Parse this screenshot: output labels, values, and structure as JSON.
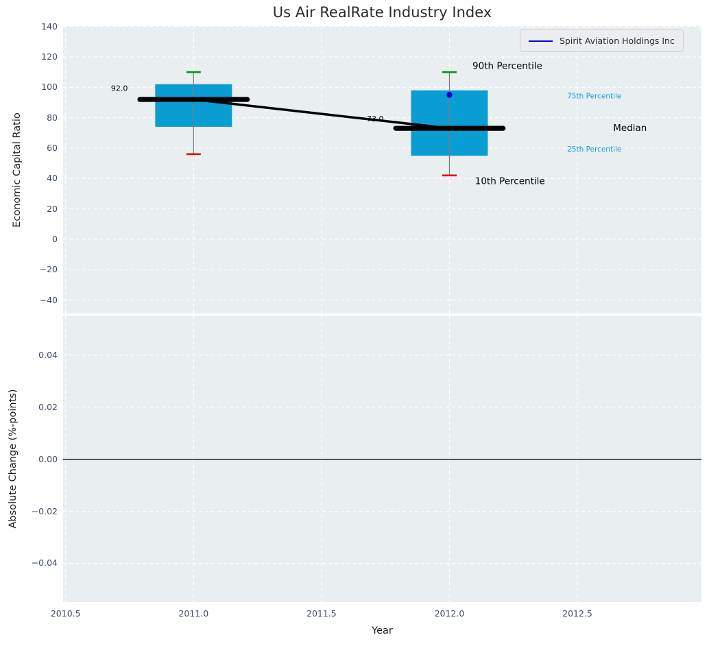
{
  "title": "Us Air RealRate Industry Index",
  "legend": {
    "label": "Spirit Aviation Holdings Inc"
  },
  "chart_data": {
    "type": "boxplot",
    "title": "Us Air RealRate Industry Index",
    "xlabel": "Year",
    "xlim": [
      2010.49,
      2012.985
    ],
    "x_ticks": [
      {
        "v": 2010.5,
        "label": "2010.5"
      },
      {
        "v": 2011.0,
        "label": "2011.0"
      },
      {
        "v": 2011.5,
        "label": "2011.5"
      },
      {
        "v": 2012.0,
        "label": "2012.0"
      },
      {
        "v": 2012.5,
        "label": "2012.5"
      }
    ],
    "subplot_top": {
      "ylabel": "Economic Capital Ratio",
      "ylim": [
        -48.8,
        140.3
      ],
      "y_ticks": [
        {
          "v": 140,
          "label": "140"
        },
        {
          "v": 120,
          "label": "120"
        },
        {
          "v": 100,
          "label": "100"
        },
        {
          "v": 80,
          "label": "80"
        },
        {
          "v": 60,
          "label": "60"
        },
        {
          "v": 40,
          "label": "40"
        },
        {
          "v": 20,
          "label": "20"
        },
        {
          "v": 0,
          "label": "0"
        },
        {
          "v": -20,
          "label": "−20"
        },
        {
          "v": -40,
          "label": "−40"
        }
      ],
      "grid": true,
      "boxes": [
        {
          "x": 2011,
          "whisker_low": 56,
          "q1": 74,
          "median": 92,
          "q3": 102,
          "whisker_high": 110
        },
        {
          "x": 2012,
          "whisker_low": 42,
          "q1": 55,
          "median": 73,
          "q3": 98,
          "whisker_high": 110
        }
      ],
      "box_half_width": 0.15,
      "cap_half_width": 0.028,
      "median_seg_half_width": 0.21,
      "median_trend": [
        {
          "x": 2011,
          "y": 92
        },
        {
          "x": 2012,
          "y": 73
        }
      ],
      "company_series": {
        "name": "Spirit Aviation Holdings Inc",
        "points": [
          {
            "x": 2012,
            "y": 95
          }
        ]
      },
      "annotations": [
        {
          "text": "92.0",
          "x": 2010.71,
          "y": 99,
          "color": "#000000",
          "size": 11,
          "anchor": "middle"
        },
        {
          "text": "73.0",
          "x": 2011.71,
          "y": 79,
          "color": "#000000",
          "size": 11,
          "anchor": "middle"
        },
        {
          "text": "90th Percentile",
          "x": 2012.09,
          "y": 114,
          "color": "#000000",
          "size": 13.5,
          "anchor": "start"
        },
        {
          "text": "10th Percentile",
          "x": 2012.1,
          "y": 38,
          "color": "#000000",
          "size": 13.5,
          "anchor": "start"
        },
        {
          "text": "75th Percentile",
          "x": 2012.46,
          "y": 94,
          "color": "#1b9cd3",
          "size": 10.5,
          "anchor": "start"
        },
        {
          "text": "25th Percentile",
          "x": 2012.46,
          "y": 59,
          "color": "#1b9cd3",
          "size": 10.5,
          "anchor": "start"
        },
        {
          "text": "Median",
          "x": 2012.64,
          "y": 73,
          "color": "#000000",
          "size": 13.5,
          "anchor": "start"
        }
      ]
    },
    "subplot_bottom": {
      "ylabel": "Absolute Change (%-points)",
      "ylim": [
        -0.0549,
        0.055
      ],
      "y_ticks": [
        {
          "v": 0.04,
          "label": "0.04"
        },
        {
          "v": 0.02,
          "label": "0.02"
        },
        {
          "v": 0.0,
          "label": "0.00"
        },
        {
          "v": -0.02,
          "label": "−0.02"
        },
        {
          "v": -0.04,
          "label": "−0.04"
        }
      ],
      "grid": true,
      "zero_line": 0.0
    },
    "colors": {
      "plot_bg": "#e9eef0",
      "grid": "#ffffff",
      "box_fill": "#0a9dd4",
      "whisker": "#7b7b7b",
      "cap_top": "#0b910b",
      "cap_bottom": "#e80202",
      "median": "#000000",
      "trend": "#000000",
      "company": "#0000cd",
      "zero_line": "#000000",
      "tick_label": "#3d4c63",
      "percentile_label": "#1b9cd3"
    }
  }
}
